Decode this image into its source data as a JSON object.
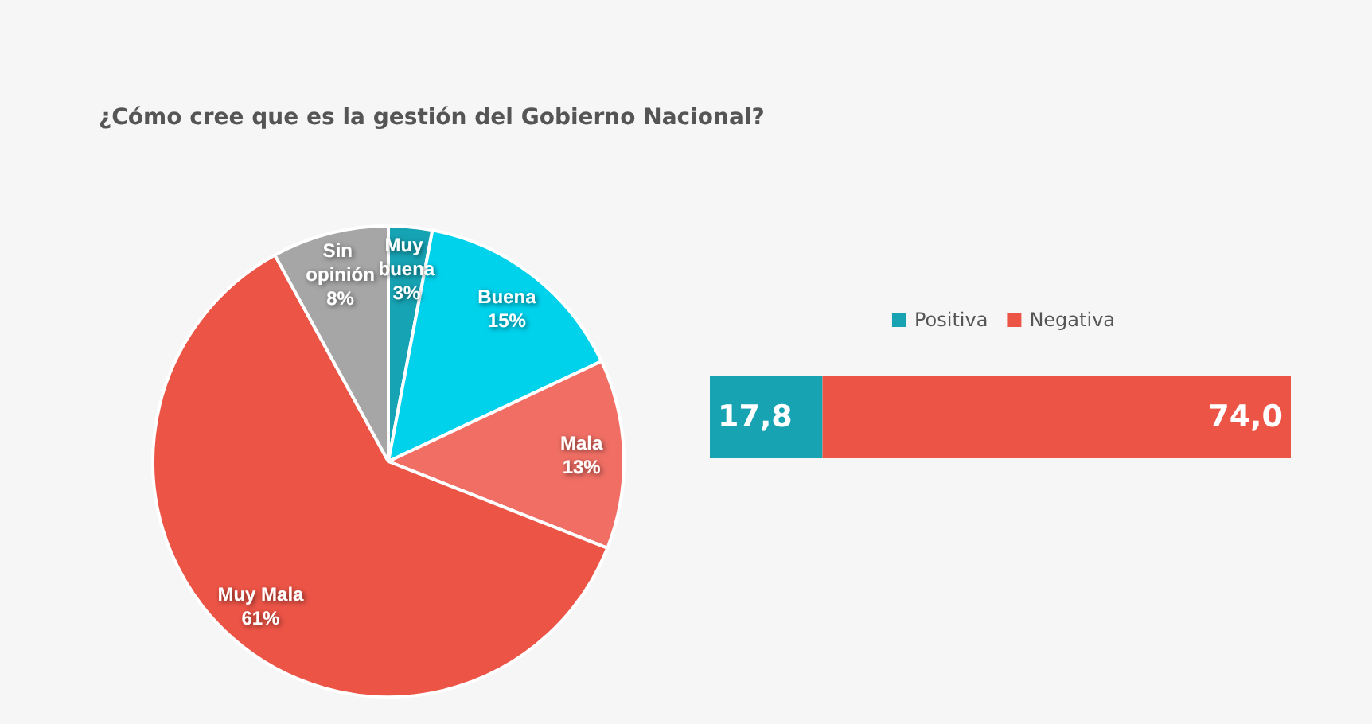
{
  "chart_data": [
    {
      "type": "pie",
      "title": "¿Cómo cree que es la gestión del Gobierno Nacional?",
      "categories": [
        "Muy buena",
        "Buena",
        "Mala",
        "Muy Mala",
        "Sin opinión"
      ],
      "values": [
        3,
        15,
        13,
        61,
        8
      ],
      "value_labels": [
        "3%",
        "15%",
        "13%",
        "61%",
        "8%"
      ],
      "colors": [
        "#16a3b3",
        "#00d2ec",
        "#f06e64",
        "#ec5446",
        "#a6a6a6"
      ]
    },
    {
      "type": "bar",
      "orientation": "horizontal",
      "stacked": true,
      "legend": "top",
      "categories": [
        null
      ],
      "series": [
        {
          "name": "Positiva",
          "color": "#17a3b2",
          "values": [
            17.8
          ],
          "value_labels": [
            "17,8"
          ]
        },
        {
          "name": "Negativa",
          "color": "#ec5446",
          "values": [
            74.0
          ],
          "value_labels": [
            "74,0"
          ]
        }
      ]
    }
  ]
}
